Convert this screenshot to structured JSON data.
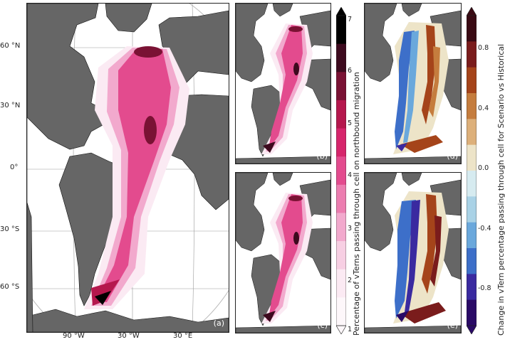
{
  "panels": {
    "a": {
      "label": "(a)"
    },
    "b": {
      "label": "(b)"
    },
    "c": {
      "label": "(c)"
    },
    "d": {
      "label": "(d)"
    },
    "e": {
      "label": "(e)"
    }
  },
  "lat_ticks": [
    "60 °N",
    "30 °N",
    "0°",
    "30 °S",
    "60 °S"
  ],
  "lon_ticks": [
    "90 °W",
    "30 °W",
    "30 °E"
  ],
  "colorbar_percentage": {
    "label": "Percentage of vTerns passing through cell on northbound migration",
    "ticks": [
      "7",
      "6",
      "5",
      "4",
      "3",
      "2",
      "1"
    ],
    "colors": [
      "#000000",
      "#3d0a1e",
      "#7a1234",
      "#b5174d",
      "#d6256b",
      "#e34b8e",
      "#ec7db0",
      "#f2a9cd",
      "#f7cfe3",
      "#fbeaf3",
      "#fdf7fa"
    ]
  },
  "colorbar_change": {
    "label": "Change in vTern percentage passing through cell for Scenario vs Historical",
    "ticks": [
      "0.8",
      "0.4",
      "0.0",
      "-0.4",
      "-0.8"
    ],
    "colors": [
      "#3a0a14",
      "#7a1c1c",
      "#a5441a",
      "#c57d3e",
      "#ddb07a",
      "#ede4c8",
      "#d6ebf0",
      "#a9d2e6",
      "#6aa8dc",
      "#3d6fc9",
      "#3a2aa0",
      "#2a0a66"
    ]
  },
  "colors": {
    "land": "#666666",
    "coast": "#111111",
    "grid": "#9a9a9a"
  }
}
